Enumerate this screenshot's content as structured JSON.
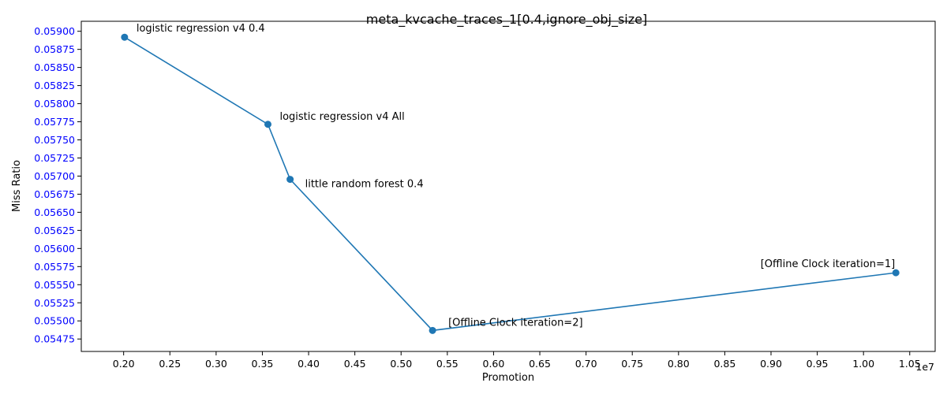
{
  "chart_data": {
    "type": "line",
    "title": "meta_kvcache_traces_1[0.4,ignore_obj_size]",
    "xlabel": "Promotion",
    "ylabel": "Miss Ratio",
    "x_offset_text": "1e7",
    "xlim": [
      0.1542,
      1.0775
    ],
    "ylim": [
      0.054578,
      0.059138
    ],
    "x_ticks": [
      0.2,
      0.25,
      0.3,
      0.35,
      0.4,
      0.45,
      0.5,
      0.55,
      0.6,
      0.65,
      0.7,
      0.75,
      0.8,
      0.85,
      0.9,
      0.95,
      1.0,
      1.05
    ],
    "x_tick_labels": [
      "0.20",
      "0.25",
      "0.30",
      "0.35",
      "0.40",
      "0.45",
      "0.50",
      "0.55",
      "0.60",
      "0.65",
      "0.70",
      "0.75",
      "0.80",
      "0.85",
      "0.90",
      "0.95",
      "1.00",
      "1.05"
    ],
    "y_ticks": [
      0.05475,
      0.055,
      0.05525,
      0.0555,
      0.05575,
      0.056,
      0.05625,
      0.0565,
      0.05675,
      0.057,
      0.05725,
      0.0575,
      0.05775,
      0.058,
      0.05825,
      0.0585,
      0.05875,
      0.059
    ],
    "y_tick_labels": [
      "0.05475",
      "0.05500",
      "0.05525",
      "0.05550",
      "0.05575",
      "0.05600",
      "0.05625",
      "0.05650",
      "0.05675",
      "0.05700",
      "0.05725",
      "0.05750",
      "0.05775",
      "0.05800",
      "0.05825",
      "0.05850",
      "0.05875",
      "0.05900"
    ],
    "y_tick_color": "#0000ff",
    "line_color": "#1f77b4",
    "grid": false,
    "series": [
      {
        "x": [
          0.201,
          0.356,
          0.38,
          0.534,
          1.035
        ],
        "y": [
          0.058918,
          0.057715,
          0.056955,
          0.054868,
          0.055665
        ],
        "labels": [
          "logistic regression v4 0.4",
          "logistic regression v4 All",
          "little random forest 0.4",
          "[Offline Clock iteration=2]",
          "[Offline Clock iteration=1]"
        ]
      }
    ]
  }
}
